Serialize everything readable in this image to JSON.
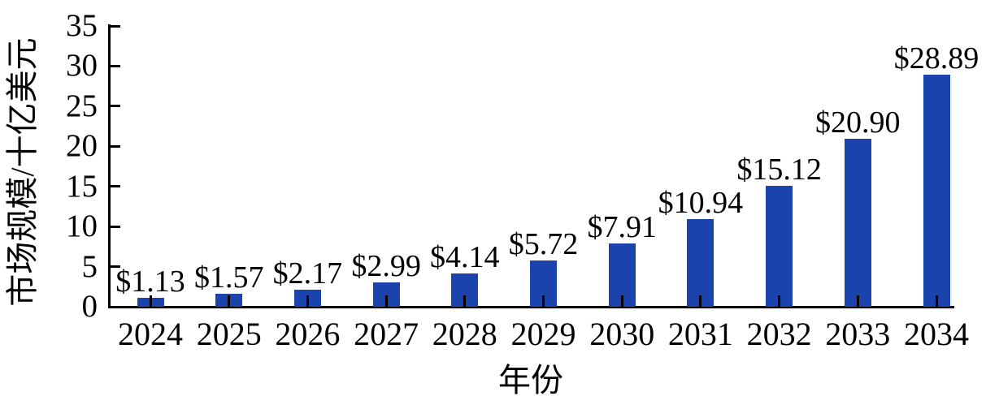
{
  "chart_data": {
    "type": "bar",
    "title": "",
    "xlabel": "年份",
    "ylabel": "市场规模/十亿美元",
    "categories": [
      "2024",
      "2025",
      "2026",
      "2027",
      "2028",
      "2029",
      "2030",
      "2031",
      "2032",
      "2033",
      "2034"
    ],
    "values": [
      1.13,
      1.57,
      2.17,
      2.99,
      4.14,
      5.72,
      7.91,
      10.94,
      15.12,
      20.9,
      28.89
    ],
    "value_labels": [
      "$1.13",
      "$1.57",
      "$2.17",
      "$2.99",
      "$4.14",
      "$5.72",
      "$7.91",
      "$10.94",
      "$15.12",
      "$20.90",
      "$28.89"
    ],
    "ylim": [
      0,
      35
    ],
    "ytick_step": 5,
    "ytick_labels": [
      "0",
      "5",
      "10",
      "15",
      "20",
      "25",
      "30",
      "35"
    ],
    "bar_color": "#1B43AE",
    "axis_color": "#000000",
    "grid": false,
    "legend_position": "none"
  }
}
